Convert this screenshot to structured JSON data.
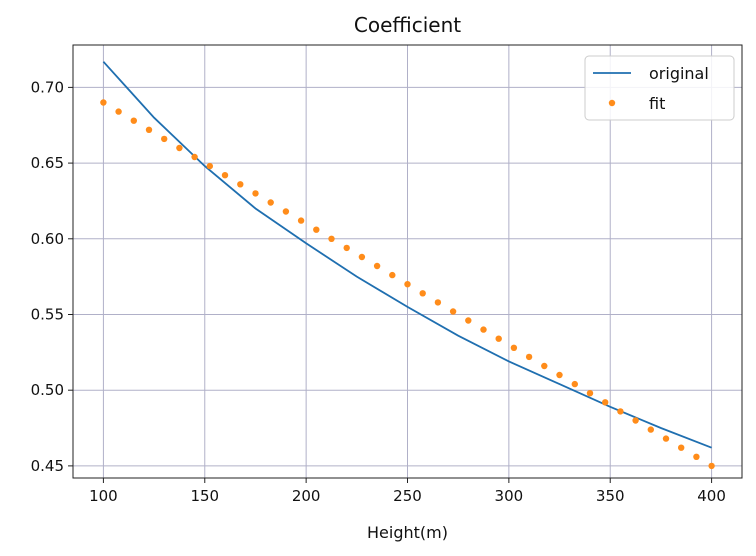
{
  "chart_data": {
    "type": "line",
    "title": "Coefficient",
    "xlabel": "Height(m)",
    "ylabel": "",
    "xlim": [
      85,
      415
    ],
    "ylim": [
      0.442,
      0.728
    ],
    "xticks": [
      100,
      150,
      200,
      250,
      300,
      350,
      400
    ],
    "yticks": [
      0.45,
      0.5,
      0.55,
      0.6,
      0.65,
      0.7
    ],
    "ytick_labels": [
      "0.45",
      "0.50",
      "0.55",
      "0.60",
      "0.65",
      "0.70"
    ],
    "xtick_labels": [
      "100",
      "150",
      "200",
      "250",
      "300",
      "350",
      "400"
    ],
    "grid": true,
    "legend_position": "top-right",
    "colors": {
      "original": "#1f6fb0",
      "fit": "#ff8c1a",
      "grid": "#b0b0c8"
    },
    "series": [
      {
        "name": "original",
        "style": "line",
        "x": [
          100,
          125,
          150,
          175,
          200,
          225,
          250,
          275,
          300,
          325,
          350,
          375,
          400
        ],
        "y": [
          0.717,
          0.68,
          0.648,
          0.62,
          0.597,
          0.575,
          0.555,
          0.536,
          0.519,
          0.504,
          0.489,
          0.475,
          0.462
        ]
      },
      {
        "name": "fit",
        "style": "dots",
        "x": [
          100,
          107.5,
          115,
          122.5,
          130,
          137.5,
          145,
          152.5,
          160,
          167.5,
          175,
          182.5,
          190,
          197.5,
          205,
          212.5,
          220,
          227.5,
          235,
          242.5,
          250,
          257.5,
          265,
          272.5,
          280,
          287.5,
          295,
          302.5,
          310,
          317.5,
          325,
          332.5,
          340,
          347.5,
          355,
          362.5,
          370,
          377.5,
          385,
          392.5,
          400
        ],
        "y": [
          0.69,
          0.684,
          0.678,
          0.672,
          0.666,
          0.66,
          0.654,
          0.648,
          0.642,
          0.636,
          0.63,
          0.624,
          0.618,
          0.612,
          0.606,
          0.6,
          0.594,
          0.588,
          0.582,
          0.576,
          0.57,
          0.564,
          0.558,
          0.552,
          0.546,
          0.54,
          0.534,
          0.528,
          0.522,
          0.516,
          0.51,
          0.504,
          0.498,
          0.492,
          0.486,
          0.48,
          0.474,
          0.468,
          0.462,
          0.456,
          0.45
        ]
      }
    ]
  }
}
